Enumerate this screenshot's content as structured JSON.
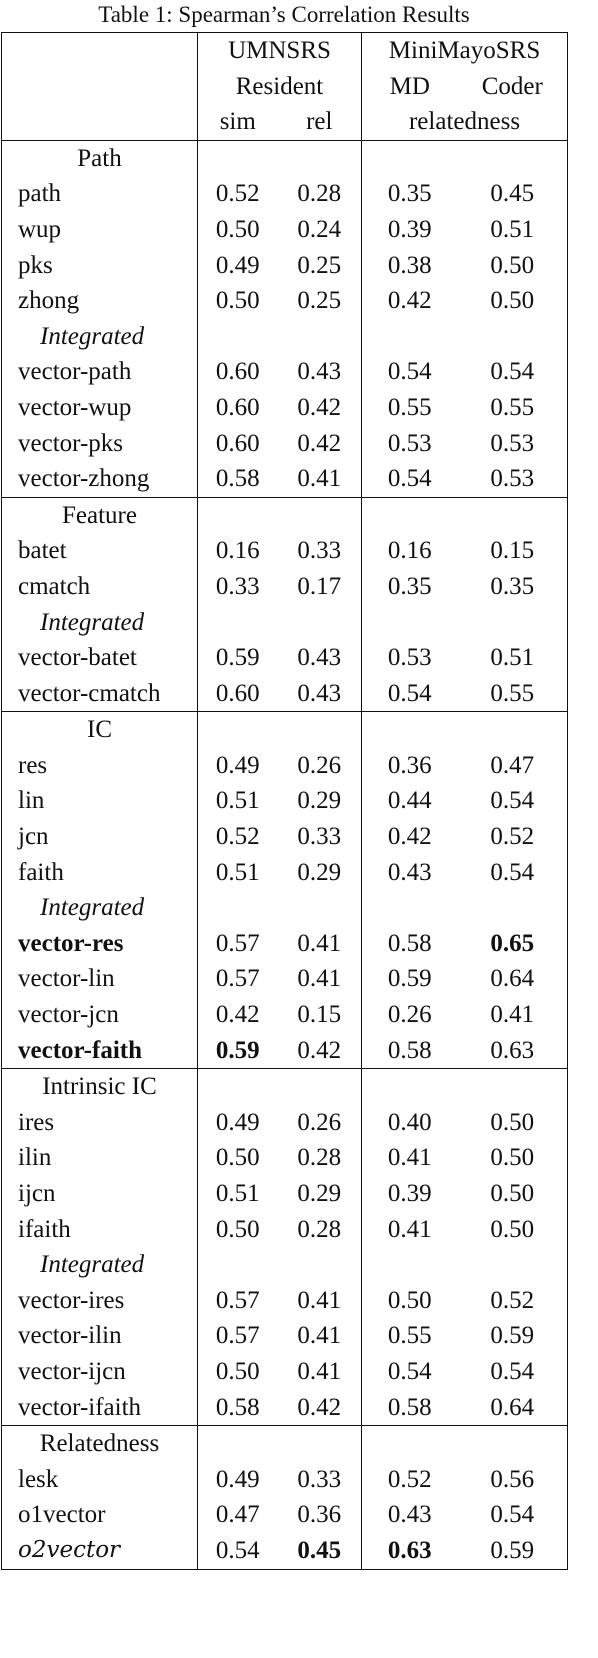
{
  "caption": "Table 1: Spearman’s Correlation Results",
  "header": {
    "umnsrs": "UMNSRS",
    "resident": "Resident",
    "sim": "sim",
    "rel": "rel",
    "minimayo": "MiniMayoSRS",
    "md": "MD",
    "coder": "Coder",
    "relatedness": "relatedness"
  },
  "sections": [
    {
      "title": "Path",
      "rows": [
        {
          "name": "path",
          "v": [
            "0.52",
            "0.28",
            "0.35",
            "0.45"
          ]
        },
        {
          "name": "wup",
          "v": [
            "0.50",
            "0.24",
            "0.39",
            "0.51"
          ]
        },
        {
          "name": "pks",
          "v": [
            "0.49",
            "0.25",
            "0.38",
            "0.50"
          ]
        },
        {
          "name": "zhong",
          "v": [
            "0.50",
            "0.25",
            "0.42",
            "0.50"
          ]
        }
      ],
      "integrated_label": "Integrated",
      "integrated_rows": [
        {
          "name": "vector-path",
          "v": [
            "0.60",
            "0.43",
            "0.54",
            "0.54"
          ]
        },
        {
          "name": "vector-wup",
          "v": [
            "0.60",
            "0.42",
            "0.55",
            "0.55"
          ]
        },
        {
          "name": "vector-pks",
          "v": [
            "0.60",
            "0.42",
            "0.53",
            "0.53"
          ]
        },
        {
          "name": "vector-zhong",
          "v": [
            "0.58",
            "0.41",
            "0.54",
            "0.53"
          ]
        }
      ]
    },
    {
      "title": "Feature",
      "rows": [
        {
          "name": "batet",
          "v": [
            "0.16",
            "0.33",
            "0.16",
            "0.15"
          ]
        },
        {
          "name": "cmatch",
          "v": [
            "0.33",
            "0.17",
            "0.35",
            "0.35"
          ]
        }
      ],
      "integrated_label": "Integrated",
      "integrated_rows": [
        {
          "name": "vector-batet",
          "v": [
            "0.59",
            "0.43",
            "0.53",
            "0.51"
          ]
        },
        {
          "name": "vector-cmatch",
          "v": [
            "0.60",
            "0.43",
            "0.54",
            "0.55"
          ]
        }
      ]
    },
    {
      "title": "IC",
      "rows": [
        {
          "name": "res",
          "v": [
            "0.49",
            "0.26",
            "0.36",
            "0.47"
          ]
        },
        {
          "name": "lin",
          "v": [
            "0.51",
            "0.29",
            "0.44",
            "0.54"
          ]
        },
        {
          "name": "jcn",
          "v": [
            "0.52",
            "0.33",
            "0.42",
            "0.52"
          ]
        },
        {
          "name": "faith",
          "v": [
            "0.51",
            "0.29",
            "0.43",
            "0.54"
          ]
        }
      ],
      "integrated_label": "Integrated",
      "integrated_rows": [
        {
          "name": "vector-res",
          "v": [
            "0.57",
            "0.41",
            "0.58",
            "0.65"
          ]
        },
        {
          "name": "vector-lin",
          "v": [
            "0.57",
            "0.41",
            "0.59",
            "0.64"
          ]
        },
        {
          "name": "vector-jcn",
          "v": [
            "0.42",
            "0.15",
            "0.26",
            "0.41"
          ]
        },
        {
          "name": "vector-faith",
          "v": [
            "0.59",
            "0.42",
            "0.58",
            "0.63"
          ]
        }
      ]
    },
    {
      "title": "Intrinsic IC",
      "rows": [
        {
          "name": "ires",
          "v": [
            "0.49",
            "0.26",
            "0.40",
            "0.50"
          ]
        },
        {
          "name": "ilin",
          "v": [
            "0.50",
            "0.28",
            "0.41",
            "0.50"
          ]
        },
        {
          "name": "ijcn",
          "v": [
            "0.51",
            "0.29",
            "0.39",
            "0.50"
          ]
        },
        {
          "name": "ifaith",
          "v": [
            "0.50",
            "0.28",
            "0.41",
            "0.50"
          ]
        }
      ],
      "integrated_label": "Integrated",
      "integrated_rows": [
        {
          "name": "vector-ires",
          "v": [
            "0.57",
            "0.41",
            "0.50",
            "0.52"
          ]
        },
        {
          "name": "vector-ilin",
          "v": [
            "0.57",
            "0.41",
            "0.55",
            "0.59"
          ]
        },
        {
          "name": "vector-ijcn",
          "v": [
            "0.50",
            "0.41",
            "0.54",
            "0.54"
          ]
        },
        {
          "name": "vector-ifaith",
          "v": [
            "0.58",
            "0.42",
            "0.58",
            "0.64"
          ]
        }
      ]
    },
    {
      "title": "Relatedness",
      "rows": [
        {
          "name": "lesk",
          "v": [
            "0.49",
            "0.33",
            "0.52",
            "0.56"
          ]
        },
        {
          "name": "o1vector",
          "v": [
            "0.47",
            "0.36",
            "0.43",
            "0.54"
          ]
        },
        {
          "name": "o2vector",
          "v": [
            "0.54",
            "0.45",
            "0.63",
            "0.59"
          ]
        }
      ]
    }
  ]
}
